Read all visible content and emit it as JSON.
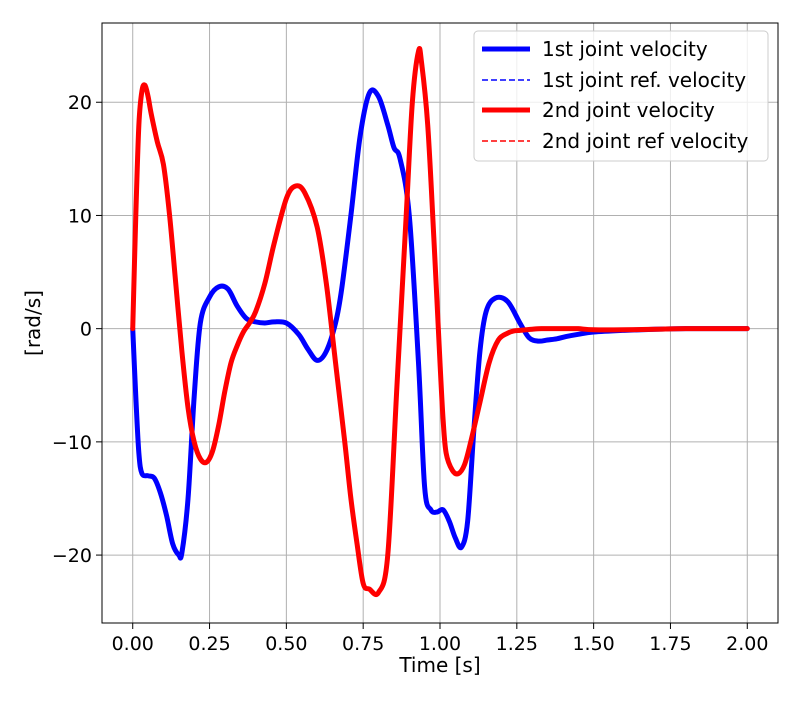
{
  "chart_data": {
    "type": "line",
    "xlabel": "Time [s]",
    "ylabel": "[rad/s]",
    "xlim": [
      -0.1,
      2.1
    ],
    "ylim": [
      -26,
      27
    ],
    "x_ticks": [
      0.0,
      0.25,
      0.5,
      0.75,
      1.0,
      1.25,
      1.5,
      1.75,
      2.0
    ],
    "x_tick_labels": [
      "0.00",
      "0.25",
      "0.50",
      "0.75",
      "1.00",
      "1.25",
      "1.50",
      "1.75",
      "2.00"
    ],
    "y_ticks": [
      -20,
      -10,
      0,
      10,
      20
    ],
    "y_tick_labels": [
      "−20",
      "−10",
      "0",
      "10",
      "20"
    ],
    "grid": true,
    "legend_position": "top-right",
    "series": [
      {
        "name": "1st joint velocity",
        "color": "#0000ff",
        "style": "solid",
        "x": [
          0.0,
          0.01,
          0.02,
          0.03,
          0.05,
          0.07,
          0.09,
          0.11,
          0.13,
          0.15,
          0.16,
          0.18,
          0.2,
          0.22,
          0.25,
          0.28,
          0.31,
          0.34,
          0.37,
          0.4,
          0.43,
          0.46,
          0.5,
          0.54,
          0.57,
          0.6,
          0.63,
          0.66,
          0.68,
          0.71,
          0.74,
          0.77,
          0.8,
          0.83,
          0.85,
          0.87,
          0.9,
          0.93,
          0.95,
          0.97,
          0.99,
          1.01,
          1.03,
          1.05,
          1.07,
          1.09,
          1.11,
          1.13,
          1.15,
          1.18,
          1.22,
          1.26,
          1.29,
          1.32,
          1.35,
          1.38,
          1.41,
          1.45,
          1.5,
          1.6,
          1.7,
          1.8,
          1.9,
          2.0
        ],
        "y": [
          0.0,
          -6.0,
          -11.0,
          -12.8,
          -13.0,
          -13.2,
          -14.5,
          -16.5,
          -19.0,
          -20.0,
          -19.8,
          -15.0,
          -6.0,
          0.5,
          2.8,
          3.7,
          3.5,
          2.0,
          0.9,
          0.6,
          0.5,
          0.6,
          0.5,
          -0.5,
          -1.8,
          -2.8,
          -2.0,
          0.5,
          3.5,
          10.0,
          17.0,
          20.8,
          20.5,
          18.0,
          16.0,
          15.0,
          10.0,
          -3.0,
          -14.0,
          -16.0,
          -16.2,
          -16.0,
          -17.0,
          -18.5,
          -19.3,
          -17.0,
          -9.0,
          -2.0,
          1.5,
          2.7,
          2.4,
          0.5,
          -0.8,
          -1.1,
          -1.0,
          -0.9,
          -0.7,
          -0.5,
          -0.3,
          -0.15,
          -0.05,
          0.0,
          0.0,
          0.0
        ]
      },
      {
        "name": "1st joint ref. velocity",
        "color": "#0000ff",
        "style": "dashed",
        "x": [],
        "y": []
      },
      {
        "name": "2nd joint velocity",
        "color": "#ff0000",
        "style": "solid",
        "x": [
          0.0,
          0.01,
          0.02,
          0.03,
          0.04,
          0.05,
          0.06,
          0.08,
          0.1,
          0.12,
          0.14,
          0.16,
          0.18,
          0.2,
          0.22,
          0.24,
          0.26,
          0.28,
          0.3,
          0.32,
          0.34,
          0.36,
          0.38,
          0.4,
          0.43,
          0.46,
          0.5,
          0.53,
          0.56,
          0.6,
          0.63,
          0.66,
          0.69,
          0.71,
          0.73,
          0.75,
          0.77,
          0.8,
          0.83,
          0.86,
          0.89,
          0.91,
          0.93,
          0.94,
          0.96,
          0.98,
          1.0,
          1.01,
          1.02,
          1.04,
          1.06,
          1.08,
          1.1,
          1.13,
          1.16,
          1.19,
          1.22,
          1.24,
          1.26,
          1.28,
          1.3,
          1.33,
          1.36,
          1.39,
          1.42,
          1.45,
          1.5,
          1.6,
          1.7,
          1.8,
          1.9,
          2.0
        ],
        "y": [
          0.0,
          10.0,
          18.0,
          21.0,
          21.5,
          20.5,
          19.0,
          16.5,
          14.5,
          10.0,
          4.0,
          -2.0,
          -7.0,
          -10.0,
          -11.5,
          -11.8,
          -10.8,
          -8.5,
          -5.5,
          -3.0,
          -1.5,
          -0.3,
          0.5,
          1.5,
          4.0,
          7.5,
          11.5,
          12.6,
          12.0,
          9.0,
          4.0,
          -3.0,
          -10.0,
          -15.0,
          -19.0,
          -22.5,
          -23.0,
          -23.3,
          -20.0,
          -5.0,
          10.0,
          20.0,
          24.5,
          23.5,
          18.0,
          8.0,
          -3.0,
          -8.0,
          -11.0,
          -12.5,
          -12.8,
          -12.0,
          -10.0,
          -6.5,
          -3.0,
          -1.0,
          -0.4,
          -0.2,
          -0.15,
          -0.1,
          -0.05,
          0.0,
          0.0,
          0.0,
          0.0,
          0.0,
          -0.1,
          -0.1,
          -0.05,
          0.0,
          0.0,
          0.0
        ]
      },
      {
        "name": "2nd joint ref velocity",
        "color": "#ff0000",
        "style": "dashed",
        "x": [],
        "y": []
      }
    ]
  }
}
